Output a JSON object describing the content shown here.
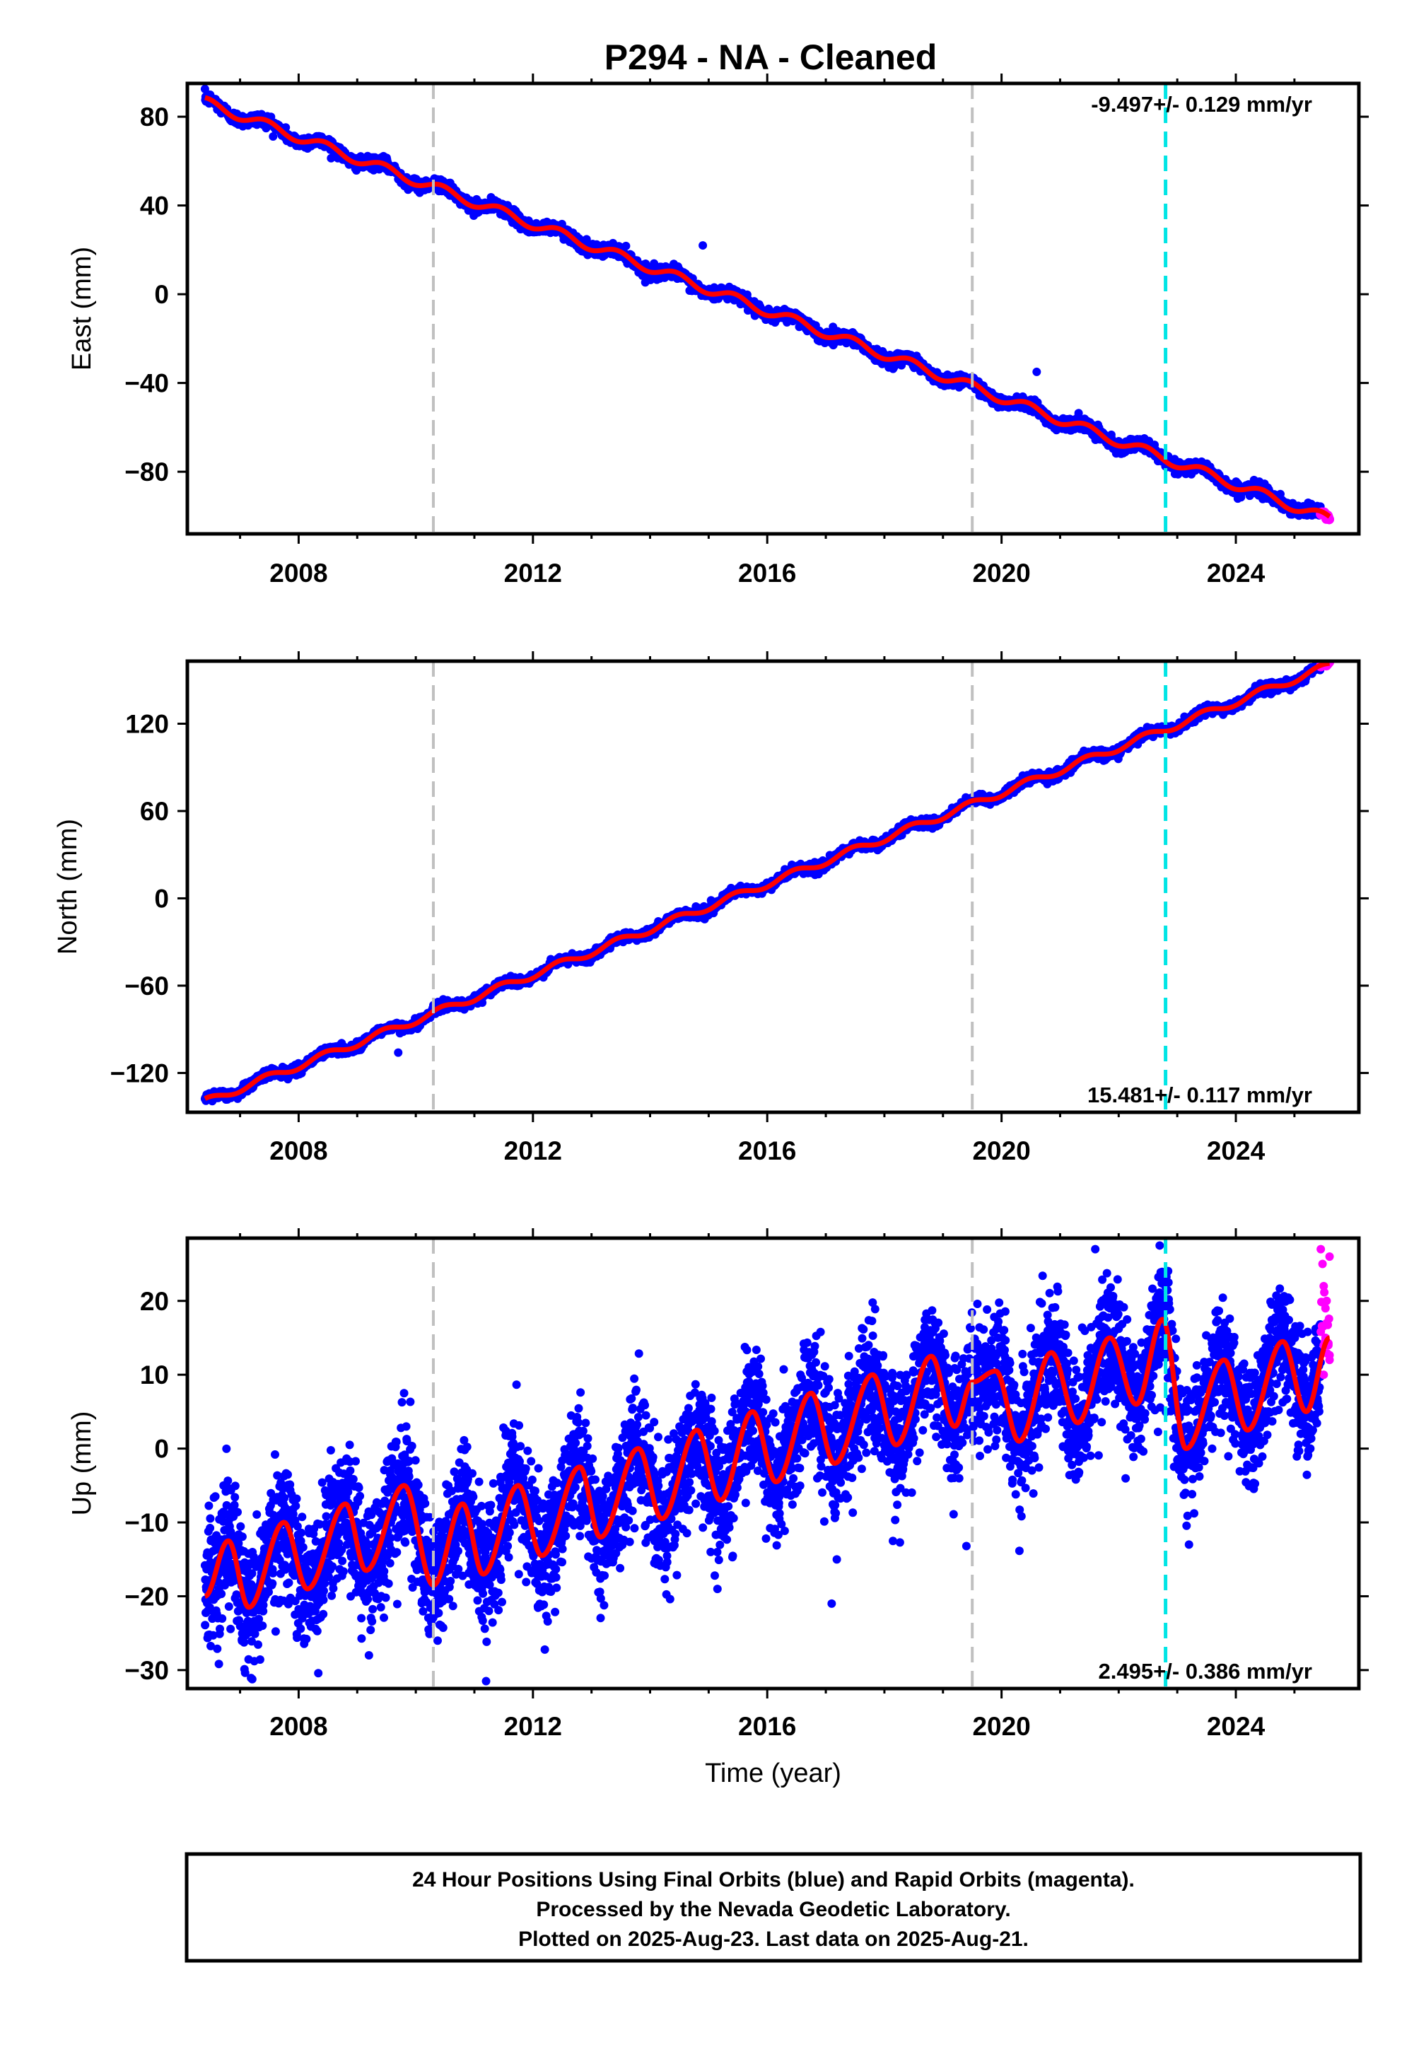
{
  "figure": {
    "title": "P294  - NA - Cleaned",
    "footer": [
      "24 Hour Positions Using Final Orbits (blue) and Rapid Orbits (magenta).",
      "Processed by the Nevada Geodetic Laboratory.",
      "Plotted on 2025-Aug-23. Last data on 2025-Aug-21."
    ]
  },
  "colors": {
    "final_orbits": "#0000ff",
    "rapid_orbits": "#ff00ff",
    "model_fit": "#ff0000",
    "equipment_change": "#c0c0c0",
    "earthquake": "#00e5e5"
  },
  "chart_data": [
    {
      "type": "scatter",
      "component": "east",
      "xlabel": "",
      "ylabel": "East (mm)",
      "xlim": [
        2006.1,
        2026.1
      ],
      "ylim": [
        -108,
        95
      ],
      "xticks": [
        2008,
        2012,
        2016,
        2020,
        2024
      ],
      "yticks": [
        -80,
        -40,
        0,
        40,
        80
      ],
      "rate_label": "-9.497+/- 0.129 mm/yr",
      "rate_position": "top-right",
      "start": {
        "x": 2006.4,
        "y": 86
      },
      "end": {
        "x": 2025.6,
        "y": -101
      },
      "trend_anchors": [
        [
          2006.4,
          86.5
        ],
        [
          2025.6,
          -101.5
        ]
      ],
      "annual_amplitude": 2.2,
      "scatter_sd": 1.4,
      "outliers": [
        [
          2014.9,
          22
        ],
        [
          2020.6,
          -35
        ]
      ],
      "equipment_change_lines": [
        2010.3,
        2019.5
      ],
      "earthquake_lines": [
        2022.8
      ],
      "rapid_orbits_start": 2025.45
    },
    {
      "type": "scatter",
      "component": "north",
      "xlabel": "",
      "ylabel": "North (mm)",
      "xlim": [
        2006.1,
        2026.1
      ],
      "ylim": [
        -147,
        163
      ],
      "xticks": [
        2008,
        2012,
        2016,
        2020,
        2024
      ],
      "yticks": [
        -120,
        -60,
        0,
        60,
        120
      ],
      "rate_label": "15.481+/- 0.117 mm/yr",
      "rate_position": "bottom-right",
      "start": {
        "x": 2006.4,
        "y": -139
      },
      "end": {
        "x": 2025.6,
        "y": 161
      },
      "trend_anchors": [
        [
          2006.4,
          -140
        ],
        [
          2025.6,
          160
        ]
      ],
      "annual_amplitude": 2.5,
      "scatter_sd": 1.6,
      "outliers": [
        [
          2009.7,
          -106
        ]
      ],
      "equipment_change_lines": [
        2010.3,
        2019.5
      ],
      "earthquake_lines": [
        2022.8
      ],
      "rapid_orbits_start": 2025.45
    },
    {
      "type": "scatter",
      "component": "up",
      "xlabel": "Time (year)",
      "ylabel": "Up (mm)",
      "xlim": [
        2006.1,
        2026.1
      ],
      "ylim": [
        -32.5,
        28.5
      ],
      "xticks": [
        2008,
        2012,
        2016,
        2020,
        2024
      ],
      "yticks": [
        -30,
        -20,
        -10,
        0,
        10,
        20
      ],
      "rate_label": "2.495+/- 0.386 mm/yr",
      "rate_position": "bottom-right",
      "seasonal_fit_peaks": [
        [
          2006.4,
          -20
        ],
        [
          2006.8,
          -12.5
        ],
        [
          2007.15,
          -21.5
        ],
        [
          2007.75,
          -10
        ],
        [
          2008.15,
          -19
        ],
        [
          2008.8,
          -7.5
        ],
        [
          2009.15,
          -16.5
        ],
        [
          2009.8,
          -5
        ],
        [
          2010.3,
          -18.5
        ],
        [
          2010.8,
          -7.5
        ],
        [
          2011.15,
          -17
        ],
        [
          2011.75,
          -5
        ],
        [
          2012.15,
          -14.5
        ],
        [
          2012.8,
          -2.5
        ],
        [
          2013.15,
          -12
        ],
        [
          2013.8,
          0
        ],
        [
          2014.2,
          -9.5
        ],
        [
          2014.8,
          2.5
        ],
        [
          2015.2,
          -7
        ],
        [
          2015.75,
          5
        ],
        [
          2016.15,
          -4.5
        ],
        [
          2016.75,
          7.5
        ],
        [
          2017.15,
          -2
        ],
        [
          2017.8,
          10
        ],
        [
          2018.2,
          0.5
        ],
        [
          2018.8,
          12.5
        ],
        [
          2019.2,
          3
        ],
        [
          2019.5,
          9
        ],
        [
          2019.9,
          10.5
        ],
        [
          2020.3,
          1
        ],
        [
          2020.85,
          13
        ],
        [
          2021.3,
          3.5
        ],
        [
          2021.85,
          15
        ],
        [
          2022.3,
          6
        ],
        [
          2022.75,
          17.5
        ],
        [
          2023.15,
          0
        ],
        [
          2023.8,
          12
        ],
        [
          2024.2,
          2.5
        ],
        [
          2024.8,
          14.5
        ],
        [
          2025.2,
          5
        ],
        [
          2025.6,
          15
        ]
      ],
      "scatter_sd": 4.2,
      "outliers": [
        [
          2009.8,
          7.5
        ],
        [
          2011.2,
          -31.5
        ],
        [
          2017.1,
          -21
        ],
        [
          2023.2,
          -13
        ],
        [
          2019.4,
          -13.2
        ],
        [
          2022.7,
          27.5
        ],
        [
          2021.6,
          27
        ],
        [
          2009.2,
          -28
        ]
      ],
      "rapid_orbits_points": [
        [
          2025.45,
          27
        ],
        [
          2025.48,
          25
        ],
        [
          2025.5,
          22
        ],
        [
          2025.53,
          19
        ],
        [
          2025.55,
          17
        ],
        [
          2025.58,
          14
        ],
        [
          2025.6,
          12
        ],
        [
          2025.5,
          10
        ],
        [
          2025.55,
          20
        ],
        [
          2025.6,
          26
        ]
      ],
      "equipment_change_lines": [
        2010.3,
        2019.5
      ],
      "earthquake_lines": [
        2022.8
      ],
      "rapid_orbits_start": 2025.45
    }
  ]
}
